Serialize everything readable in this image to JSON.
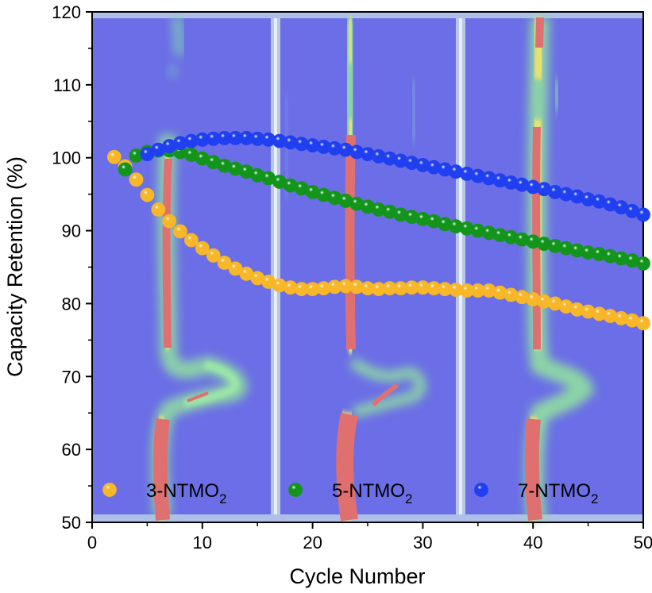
{
  "chart_data": {
    "type": "scatter",
    "title": "",
    "xlabel": "Cycle Number",
    "ylabel": "Capacity Retention (%)",
    "xlim": [
      0,
      50
    ],
    "ylim": [
      50,
      120
    ],
    "xticks": [
      0,
      10,
      20,
      30,
      40,
      50
    ],
    "yticks": [
      50,
      60,
      70,
      80,
      90,
      100,
      110,
      120
    ],
    "grid": false,
    "legend_position": "bottom",
    "background": "in-situ XRD contour map in three vertical panels (blue background, green/cyan and red intensity streaks)",
    "series": [
      {
        "name_main": "3-NTMO",
        "name_sub": "2",
        "color": "#f7b728",
        "x": [
          2,
          3,
          4,
          5,
          6,
          7,
          8,
          9,
          10,
          11,
          12,
          13,
          14,
          15,
          16,
          17,
          18,
          19,
          20,
          21,
          22,
          23,
          24,
          25,
          26,
          27,
          28,
          29,
          30,
          31,
          32,
          33,
          34,
          35,
          36,
          37,
          38,
          39,
          40,
          41,
          42,
          43,
          44,
          45,
          46,
          47,
          48,
          49,
          50
        ],
        "values": [
          100.1,
          98.8,
          97.0,
          94.9,
          92.9,
          91.3,
          89.9,
          88.7,
          87.6,
          86.6,
          85.6,
          84.8,
          84.1,
          83.5,
          83.0,
          82.5,
          82.2,
          82.0,
          82.0,
          82.1,
          82.3,
          82.4,
          82.3,
          82.1,
          82.0,
          82.1,
          82.1,
          82.2,
          82.2,
          82.1,
          82.0,
          81.9,
          81.8,
          81.8,
          81.8,
          81.5,
          81.2,
          80.9,
          80.6,
          80.3,
          80.0,
          79.6,
          79.2,
          78.9,
          78.6,
          78.3,
          78.0,
          77.7,
          77.3
        ]
      },
      {
        "name_main": "5-NTMO",
        "name_sub": "2",
        "color": "#13951b",
        "x": [
          3,
          4,
          5,
          6,
          7,
          8,
          9,
          10,
          11,
          12,
          13,
          14,
          15,
          16,
          17,
          18,
          19,
          20,
          21,
          22,
          23,
          24,
          25,
          26,
          27,
          28,
          29,
          30,
          31,
          32,
          33,
          34,
          35,
          36,
          37,
          38,
          39,
          40,
          41,
          42,
          43,
          44,
          45,
          46,
          47,
          48,
          49,
          50
        ],
        "values": [
          98.4,
          100.3,
          100.8,
          101.0,
          101.0,
          100.8,
          100.4,
          99.9,
          99.4,
          98.9,
          98.5,
          98.1,
          97.6,
          97.2,
          96.7,
          96.2,
          95.8,
          95.3,
          94.9,
          94.5,
          94.1,
          93.7,
          93.3,
          92.9,
          92.6,
          92.2,
          91.9,
          91.6,
          91.3,
          90.9,
          90.6,
          90.3,
          90.0,
          89.7,
          89.4,
          89.1,
          88.8,
          88.5,
          88.2,
          87.9,
          87.6,
          87.3,
          87.0,
          86.8,
          86.5,
          86.2,
          85.9,
          85.5
        ]
      },
      {
        "name_main": "7-NTMO",
        "name_sub": "2",
        "color": "#1f3ff0",
        "x": [
          5,
          6,
          7,
          8,
          9,
          10,
          11,
          12,
          13,
          14,
          15,
          16,
          17,
          18,
          19,
          20,
          21,
          22,
          23,
          24,
          25,
          26,
          27,
          28,
          29,
          30,
          31,
          32,
          33,
          34,
          35,
          36,
          37,
          38,
          39,
          40,
          41,
          42,
          43,
          44,
          45,
          46,
          47,
          48,
          49,
          50
        ],
        "values": [
          100.5,
          101.1,
          101.6,
          102.0,
          102.3,
          102.5,
          102.6,
          102.7,
          102.7,
          102.7,
          102.6,
          102.5,
          102.3,
          102.1,
          101.9,
          101.7,
          101.5,
          101.3,
          101.1,
          100.8,
          100.5,
          100.2,
          99.9,
          99.6,
          99.3,
          99.0,
          98.7,
          98.4,
          98.1,
          97.8,
          97.5,
          97.2,
          96.9,
          96.6,
          96.3,
          96.0,
          95.7,
          95.3,
          95.0,
          94.7,
          94.3,
          94.0,
          93.6,
          93.2,
          92.7,
          92.2
        ]
      }
    ]
  }
}
